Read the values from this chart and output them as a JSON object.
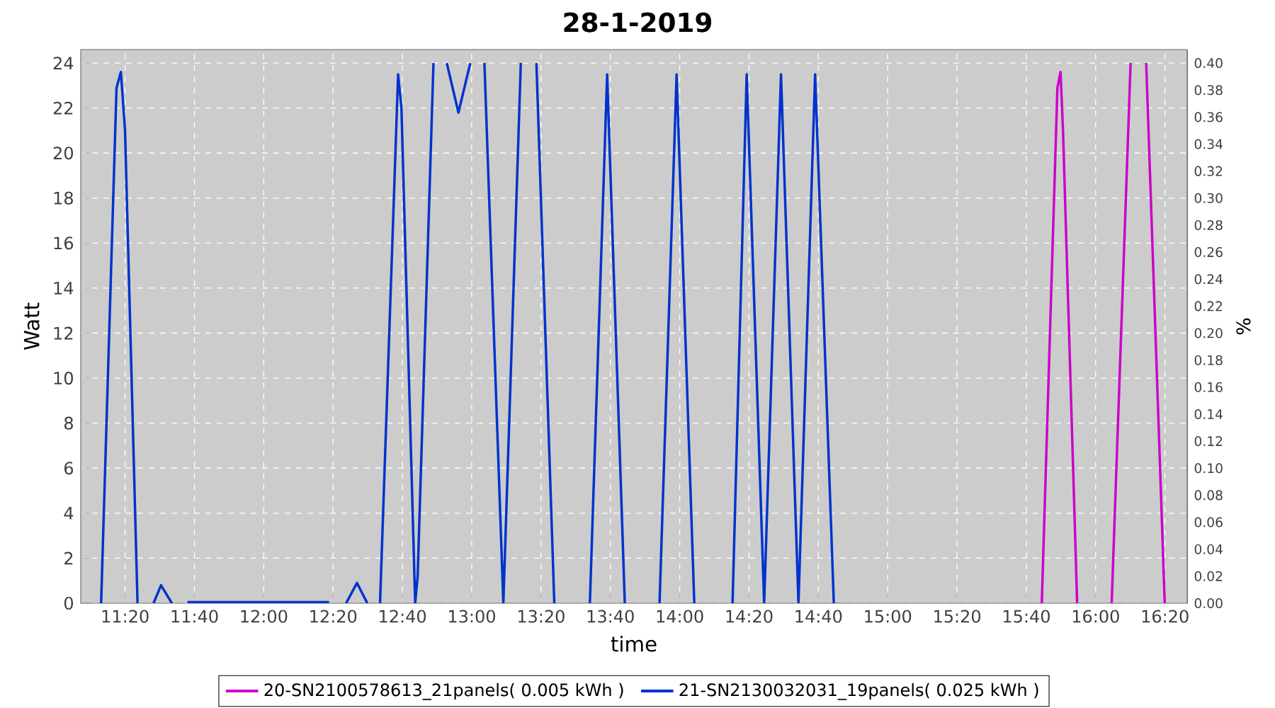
{
  "chart_data": {
    "type": "line",
    "title": "28-1-2019",
    "xlabel": "time",
    "ylabel": "Watt",
    "y2label": "%",
    "xlim": [
      11.12,
      16.44
    ],
    "ylim": [
      0,
      24.6
    ],
    "y2lim": [
      0,
      0.41
    ],
    "xticks": [
      {
        "value": 11.3333,
        "label": "11:20"
      },
      {
        "value": 11.6667,
        "label": "11:40"
      },
      {
        "value": 12,
        "label": "12:00"
      },
      {
        "value": 12.3333,
        "label": "12:20"
      },
      {
        "value": 12.6667,
        "label": "12:40"
      },
      {
        "value": 13,
        "label": "13:00"
      },
      {
        "value": 13.3333,
        "label": "13:20"
      },
      {
        "value": 13.6667,
        "label": "13:40"
      },
      {
        "value": 14,
        "label": "14:00"
      },
      {
        "value": 14.3333,
        "label": "14:20"
      },
      {
        "value": 14.6667,
        "label": "14:40"
      },
      {
        "value": 15,
        "label": "15:00"
      },
      {
        "value": 15.3333,
        "label": "15:20"
      },
      {
        "value": 15.6667,
        "label": "15:40"
      },
      {
        "value": 16,
        "label": "16:00"
      },
      {
        "value": 16.3333,
        "label": "16:20"
      }
    ],
    "yticks": [
      0,
      2,
      4,
      6,
      8,
      10,
      12,
      14,
      16,
      18,
      20,
      22,
      24
    ],
    "y2ticks": [
      {
        "value": 0,
        "label": "0.00"
      },
      {
        "value": 0.02,
        "label": "0.02"
      },
      {
        "value": 0.04,
        "label": "0.04"
      },
      {
        "value": 0.06,
        "label": "0.06"
      },
      {
        "value": 0.08,
        "label": "0.08"
      },
      {
        "value": 0.1,
        "label": "0.10"
      },
      {
        "value": 0.12,
        "label": "0.12"
      },
      {
        "value": 0.14,
        "label": "0.14"
      },
      {
        "value": 0.16,
        "label": "0.16"
      },
      {
        "value": 0.18,
        "label": "0.18"
      },
      {
        "value": 0.2,
        "label": "0.20"
      },
      {
        "value": 0.22,
        "label": "0.22"
      },
      {
        "value": 0.24,
        "label": "0.24"
      },
      {
        "value": 0.26,
        "label": "0.26"
      },
      {
        "value": 0.28,
        "label": "0.28"
      },
      {
        "value": 0.3,
        "label": "0.30"
      },
      {
        "value": 0.32,
        "label": "0.32"
      },
      {
        "value": 0.34,
        "label": "0.34"
      },
      {
        "value": 0.36,
        "label": "0.36"
      },
      {
        "value": 0.38,
        "label": "0.38"
      },
      {
        "value": 0.4,
        "label": "0.40"
      }
    ],
    "grid": true,
    "legend": "bottom",
    "marker": "none",
    "line_style": "solid",
    "series": [
      {
        "name": "20-SN2100578613_21panels( 0.005 kWh )",
        "color": "#cc00cc",
        "x": [
          15.741,
          15.816,
          15.831,
          15.843,
          15.911,
          15.99,
          16.077,
          16.168,
          16.2,
          16.243,
          16.332
        ],
        "values": [
          0,
          22.9,
          23.6,
          21,
          0,
          null,
          0,
          24,
          null,
          24,
          0
        ]
      },
      {
        "name": "21-SN2130032031_19panels( 0.025 kWh )",
        "color": "#0033cc",
        "x": [
          11.218,
          11.292,
          11.313,
          11.333,
          11.393,
          11.43,
          11.47,
          11.506,
          11.558,
          11.6,
          11.633,
          11.974,
          12.314,
          12.35,
          12.396,
          12.448,
          12.498,
          12.53,
          12.559,
          12.646,
          12.662,
          12.728,
          12.74,
          12.816,
          12.85,
          12.88,
          12.936,
          12.993,
          13.03,
          13.061,
          13.152,
          13.236,
          13.27,
          13.311,
          13.397,
          13.45,
          13.568,
          13.651,
          13.736,
          13.8,
          13.903,
          13.985,
          14.07,
          14.15,
          14.254,
          14.322,
          14.406,
          14.487,
          14.571,
          14.651,
          14.741
        ],
        "values": [
          0,
          22.9,
          23.6,
          21,
          0,
          null,
          0,
          0.8,
          0,
          null,
          0.05,
          0.05,
          0.05,
          null,
          0,
          0.9,
          0,
          null,
          0,
          23.5,
          22,
          0,
          1.2,
          24,
          null,
          24,
          21.8,
          24,
          null,
          24,
          0,
          24,
          null,
          24,
          0,
          null,
          0,
          23.5,
          0,
          null,
          0,
          23.5,
          0,
          null,
          0,
          23.5,
          0,
          23.5,
          0,
          23.5,
          0
        ]
      }
    ]
  }
}
